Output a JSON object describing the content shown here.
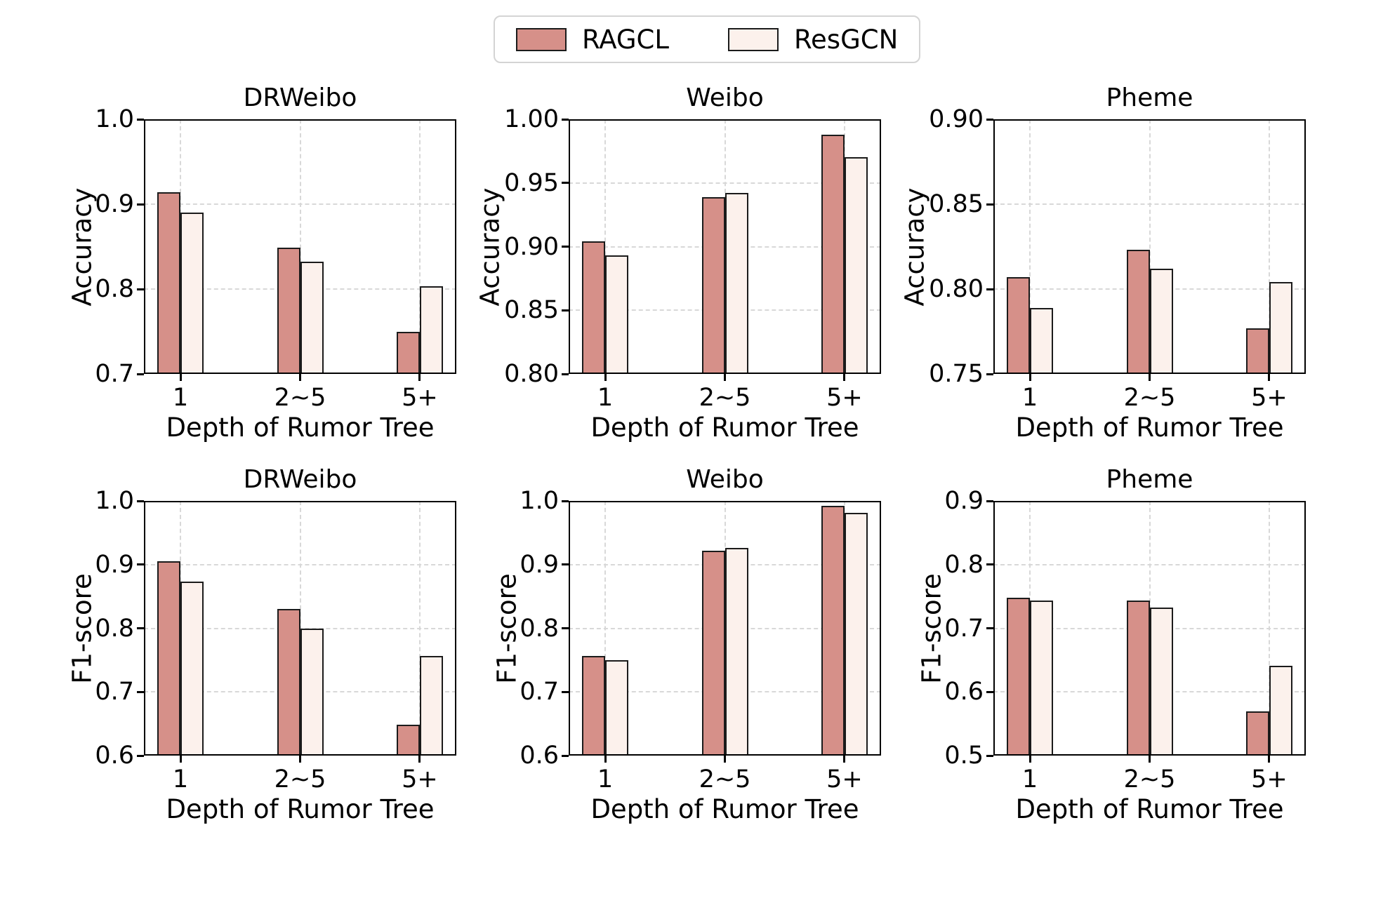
{
  "figure": {
    "background": "#ffffff",
    "legend": {
      "position": "upper center",
      "border_color": "#d4d4d4",
      "entries": [
        {
          "label": "RAGCL",
          "color": "#d69089"
        },
        {
          "label": "ResGCN",
          "color": "#fcf1ec"
        }
      ]
    },
    "style": {
      "bar_edge_color": "#1b1b1b",
      "grid_color": "#d8d8d8",
      "spine_color": "#000000",
      "grid": true
    }
  },
  "chart_data": [
    {
      "type": "bar",
      "title": "DRWeibo",
      "ylabel": "Accuracy",
      "xlabel": "Depth of Rumor Tree",
      "categories": [
        "1",
        "2~5",
        "5+"
      ],
      "series": [
        {
          "name": "RAGCL",
          "values": [
            0.914,
            0.849,
            0.75
          ]
        },
        {
          "name": "ResGCN",
          "values": [
            0.89,
            0.832,
            0.803
          ]
        }
      ],
      "ylim": [
        0.7,
        1.0
      ],
      "ytick_values": [
        1.0,
        0.9,
        0.8,
        0.7
      ],
      "ytick_labels": [
        "1.0",
        "0.9",
        "0.8",
        "0.7"
      ]
    },
    {
      "type": "bar",
      "title": "Weibo",
      "ylabel": "Accuracy",
      "xlabel": "Depth of Rumor Tree",
      "categories": [
        "1",
        "2~5",
        "5+"
      ],
      "series": [
        {
          "name": "RAGCL",
          "values": [
            0.904,
            0.939,
            0.988
          ]
        },
        {
          "name": "ResGCN",
          "values": [
            0.893,
            0.942,
            0.97
          ]
        }
      ],
      "ylim": [
        0.8,
        1.0
      ],
      "ytick_values": [
        1.0,
        0.95,
        0.9,
        0.85,
        0.8
      ],
      "ytick_labels": [
        "1.00",
        "0.95",
        "0.90",
        "0.85",
        "0.80"
      ]
    },
    {
      "type": "bar",
      "title": "Pheme",
      "ylabel": "Accuracy",
      "xlabel": "Depth of Rumor Tree",
      "categories": [
        "1",
        "2~5",
        "5+"
      ],
      "series": [
        {
          "name": "RAGCL",
          "values": [
            0.807,
            0.823,
            0.777
          ]
        },
        {
          "name": "ResGCN",
          "values": [
            0.789,
            0.812,
            0.804
          ]
        }
      ],
      "ylim": [
        0.75,
        0.9
      ],
      "ytick_values": [
        0.9,
        0.85,
        0.8,
        0.75
      ],
      "ytick_labels": [
        "0.90",
        "0.85",
        "0.80",
        "0.75"
      ]
    },
    {
      "type": "bar",
      "title": "DRWeibo",
      "ylabel": "F1-score",
      "xlabel": "Depth of Rumor Tree",
      "categories": [
        "1",
        "2~5",
        "5+"
      ],
      "series": [
        {
          "name": "RAGCL",
          "values": [
            0.905,
            0.83,
            0.649
          ]
        },
        {
          "name": "ResGCN",
          "values": [
            0.873,
            0.8,
            0.756
          ]
        }
      ],
      "ylim": [
        0.6,
        1.0
      ],
      "ytick_values": [
        1.0,
        0.9,
        0.8,
        0.7,
        0.6
      ],
      "ytick_labels": [
        "1.0",
        "0.9",
        "0.8",
        "0.7",
        "0.6"
      ]
    },
    {
      "type": "bar",
      "title": "Weibo",
      "ylabel": "F1-score",
      "xlabel": "Depth of Rumor Tree",
      "categories": [
        "1",
        "2~5",
        "5+"
      ],
      "series": [
        {
          "name": "RAGCL",
          "values": [
            0.757,
            0.922,
            0.992
          ]
        },
        {
          "name": "ResGCN",
          "values": [
            0.75,
            0.926,
            0.981
          ]
        }
      ],
      "ylim": [
        0.6,
        1.0
      ],
      "ytick_values": [
        1.0,
        0.9,
        0.8,
        0.7,
        0.6
      ],
      "ytick_labels": [
        "1.0",
        "0.9",
        "0.8",
        "0.7",
        "0.6"
      ]
    },
    {
      "type": "bar",
      "title": "Pheme",
      "ylabel": "F1-score",
      "xlabel": "Depth of Rumor Tree",
      "categories": [
        "1",
        "2~5",
        "5+"
      ],
      "series": [
        {
          "name": "RAGCL",
          "values": [
            0.748,
            0.743,
            0.569
          ]
        },
        {
          "name": "ResGCN",
          "values": [
            0.743,
            0.732,
            0.641
          ]
        }
      ],
      "ylim": [
        0.5,
        0.9
      ],
      "ytick_values": [
        0.9,
        0.8,
        0.7,
        0.6,
        0.5
      ],
      "ytick_labels": [
        "0.9",
        "0.8",
        "0.7",
        "0.6",
        "0.5"
      ]
    }
  ]
}
